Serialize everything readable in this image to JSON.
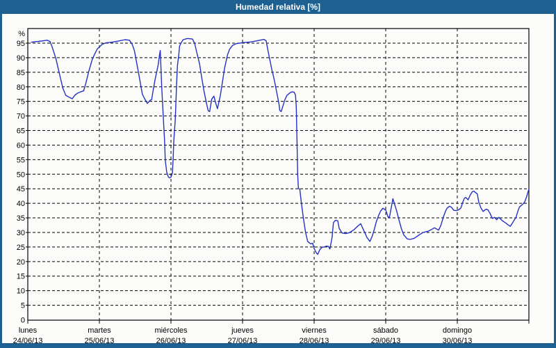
{
  "window": {
    "title": "Humedad relativa [%]"
  },
  "colors": {
    "frame": "#1e6191",
    "titlebar_bg": "#1e6191",
    "title_text": "#ffffff",
    "plot_bg": "#fcfdfa",
    "line": "#2230c4",
    "grid": "#000000",
    "axis": "#000000",
    "text": "#000000"
  },
  "chart_data": {
    "type": "line",
    "title": "Humedad relativa [%]",
    "ylabel": "%",
    "ylim": [
      0,
      100
    ],
    "y_tick_step": 5,
    "y_tick_labels": [
      "0",
      "5",
      "10",
      "15",
      "20",
      "25",
      "30",
      "35",
      "40",
      "45",
      "50",
      "55",
      "60",
      "65",
      "70",
      "75",
      "80",
      "85",
      "90",
      "95"
    ],
    "y_unit_label": "%",
    "grid": "dashed",
    "legend_position": "none",
    "x_days": [
      {
        "name": "lunes",
        "date": "24/06/13"
      },
      {
        "name": "martes",
        "date": "25/06/13"
      },
      {
        "name": "miércoles",
        "date": "26/06/13"
      },
      {
        "name": "jueves",
        "date": "27/06/13"
      },
      {
        "name": "viernes",
        "date": "28/06/13"
      },
      {
        "name": "sábado",
        "date": "29/06/13"
      },
      {
        "name": "domingo",
        "date": "30/06/13"
      }
    ],
    "xlim_days": [
      0,
      7
    ],
    "series": [
      {
        "name": "Humedad relativa",
        "units": "%",
        "points": [
          [
            0.05,
            95.3
          ],
          [
            0.1,
            95.5
          ],
          [
            0.15,
            95.6
          ],
          [
            0.21,
            95.8
          ],
          [
            0.27,
            96.0
          ],
          [
            0.31,
            95.6
          ],
          [
            0.34,
            93.7
          ],
          [
            0.39,
            89.9
          ],
          [
            0.44,
            84.7
          ],
          [
            0.49,
            79.5
          ],
          [
            0.53,
            77.1
          ],
          [
            0.58,
            76.4
          ],
          [
            0.62,
            75.9
          ],
          [
            0.66,
            77.2
          ],
          [
            0.7,
            77.9
          ],
          [
            0.74,
            78.3
          ],
          [
            0.78,
            78.6
          ],
          [
            0.81,
            81.1
          ],
          [
            0.85,
            85.1
          ],
          [
            0.9,
            89.4
          ],
          [
            0.94,
            91.5
          ],
          [
            0.97,
            93.0
          ],
          [
            1.04,
            94.6
          ],
          [
            1.09,
            95.1
          ],
          [
            1.17,
            95.3
          ],
          [
            1.26,
            95.7
          ],
          [
            1.36,
            96.2
          ],
          [
            1.42,
            96.0
          ],
          [
            1.46,
            94.5
          ],
          [
            1.49,
            92.3
          ],
          [
            1.52,
            88.3
          ],
          [
            1.55,
            84.3
          ],
          [
            1.58,
            80.3
          ],
          [
            1.6,
            77.5
          ],
          [
            1.63,
            76.0
          ],
          [
            1.67,
            74.3
          ],
          [
            1.71,
            75.4
          ],
          [
            1.73,
            75.6
          ],
          [
            1.75,
            78.7
          ],
          [
            1.78,
            82.7
          ],
          [
            1.82,
            87.4
          ],
          [
            1.84,
            91.0
          ],
          [
            1.85,
            92.5
          ],
          [
            1.86,
            86.6
          ],
          [
            1.87,
            80.3
          ],
          [
            1.89,
            70.7
          ],
          [
            1.91,
            62.0
          ],
          [
            1.92,
            54.8
          ],
          [
            1.94,
            50.8
          ],
          [
            1.96,
            49.2
          ],
          [
            1.98,
            48.7
          ],
          [
            2.0,
            49.0
          ],
          [
            2.02,
            50.5
          ],
          [
            2.03,
            55.2
          ],
          [
            2.04,
            61.6
          ],
          [
            2.06,
            68.8
          ],
          [
            2.07,
            75.2
          ],
          [
            2.08,
            81.6
          ],
          [
            2.09,
            87.2
          ],
          [
            2.11,
            91.2
          ],
          [
            2.12,
            94.0
          ],
          [
            2.14,
            95.0
          ],
          [
            2.17,
            96.2
          ],
          [
            2.23,
            96.6
          ],
          [
            2.3,
            96.4
          ],
          [
            2.33,
            95.0
          ],
          [
            2.36,
            91.8
          ],
          [
            2.4,
            87.8
          ],
          [
            2.43,
            83.1
          ],
          [
            2.46,
            78.7
          ],
          [
            2.5,
            73.9
          ],
          [
            2.52,
            71.8
          ],
          [
            2.54,
            71.5
          ],
          [
            2.57,
            75.8
          ],
          [
            2.6,
            76.8
          ],
          [
            2.63,
            74.0
          ],
          [
            2.65,
            72.5
          ],
          [
            2.69,
            77.1
          ],
          [
            2.72,
            81.9
          ],
          [
            2.75,
            86.6
          ],
          [
            2.79,
            91.0
          ],
          [
            2.82,
            93.0
          ],
          [
            2.86,
            94.2
          ],
          [
            2.91,
            94.8
          ],
          [
            3.01,
            95.2
          ],
          [
            3.11,
            95.4
          ],
          [
            3.2,
            95.8
          ],
          [
            3.3,
            96.3
          ],
          [
            3.33,
            95.8
          ],
          [
            3.35,
            93.0
          ],
          [
            3.37,
            90.6
          ],
          [
            3.39,
            88.2
          ],
          [
            3.41,
            85.8
          ],
          [
            3.43,
            83.8
          ],
          [
            3.45,
            81.5
          ],
          [
            3.47,
            79.0
          ],
          [
            3.49,
            76.5
          ],
          [
            3.51,
            74.0
          ],
          [
            3.52,
            71.9
          ],
          [
            3.54,
            71.5
          ],
          [
            3.56,
            73.1
          ],
          [
            3.59,
            75.5
          ],
          [
            3.62,
            77.1
          ],
          [
            3.66,
            77.9
          ],
          [
            3.69,
            78.3
          ],
          [
            3.72,
            78.2
          ],
          [
            3.74,
            77.1
          ],
          [
            3.75,
            73.0
          ],
          [
            3.76,
            62.0
          ],
          [
            3.77,
            50.0
          ],
          [
            3.78,
            45.2
          ],
          [
            3.8,
            44.8
          ],
          [
            3.82,
            40.4
          ],
          [
            3.85,
            34.8
          ],
          [
            3.88,
            30.1
          ],
          [
            3.91,
            26.9
          ],
          [
            3.95,
            26.1
          ],
          [
            3.98,
            26.3
          ],
          [
            4.0,
            24.5
          ],
          [
            4.03,
            23.0
          ],
          [
            4.05,
            22.5
          ],
          [
            4.08,
            24.1
          ],
          [
            4.11,
            24.9
          ],
          [
            4.14,
            25.0
          ],
          [
            4.17,
            25.3
          ],
          [
            4.2,
            25.2
          ],
          [
            4.22,
            24.3
          ],
          [
            4.25,
            28.3
          ],
          [
            4.27,
            33.4
          ],
          [
            4.3,
            34.2
          ],
          [
            4.33,
            34.0
          ],
          [
            4.35,
            31.4
          ],
          [
            4.39,
            29.8
          ],
          [
            4.44,
            29.6
          ],
          [
            4.49,
            29.9
          ],
          [
            4.53,
            30.5
          ],
          [
            4.56,
            31.0
          ],
          [
            4.61,
            32.2
          ],
          [
            4.65,
            33.0
          ],
          [
            4.68,
            31.4
          ],
          [
            4.71,
            29.8
          ],
          [
            4.74,
            28.2
          ],
          [
            4.78,
            26.9
          ],
          [
            4.81,
            28.6
          ],
          [
            4.84,
            31.0
          ],
          [
            4.87,
            33.8
          ],
          [
            4.9,
            35.8
          ],
          [
            4.93,
            37.4
          ],
          [
            4.96,
            38.3
          ],
          [
            5.0,
            37.7
          ],
          [
            5.03,
            35.5
          ],
          [
            5.05,
            35.0
          ],
          [
            5.08,
            38.8
          ],
          [
            5.1,
            41.6
          ],
          [
            5.13,
            39.2
          ],
          [
            5.15,
            37.6
          ],
          [
            5.18,
            34.8
          ],
          [
            5.22,
            31.2
          ],
          [
            5.25,
            29.2
          ],
          [
            5.3,
            27.8
          ],
          [
            5.34,
            27.6
          ],
          [
            5.37,
            27.8
          ],
          [
            5.4,
            28.0
          ],
          [
            5.47,
            29.2
          ],
          [
            5.52,
            30.0
          ],
          [
            5.59,
            30.4
          ],
          [
            5.64,
            31.0
          ],
          [
            5.68,
            31.6
          ],
          [
            5.74,
            30.8
          ],
          [
            5.77,
            32.4
          ],
          [
            5.81,
            35.6
          ],
          [
            5.84,
            37.6
          ],
          [
            5.86,
            38.4
          ],
          [
            5.89,
            39.0
          ],
          [
            5.92,
            38.6
          ],
          [
            5.95,
            37.6
          ],
          [
            5.99,
            37.5
          ],
          [
            6.02,
            37.8
          ],
          [
            6.05,
            38.4
          ],
          [
            6.08,
            40.6
          ],
          [
            6.1,
            41.8
          ],
          [
            6.12,
            42.0
          ],
          [
            6.15,
            41.2
          ],
          [
            6.18,
            42.8
          ],
          [
            6.21,
            44.0
          ],
          [
            6.23,
            44.2
          ],
          [
            6.26,
            43.6
          ],
          [
            6.28,
            43.2
          ],
          [
            6.3,
            40.4
          ],
          [
            6.33,
            38.4
          ],
          [
            6.36,
            37.2
          ],
          [
            6.39,
            37.8
          ],
          [
            6.41,
            38.0
          ],
          [
            6.43,
            37.7
          ],
          [
            6.46,
            36.4
          ],
          [
            6.49,
            34.8
          ],
          [
            6.52,
            35.2
          ],
          [
            6.55,
            34.4
          ],
          [
            6.58,
            35.2
          ],
          [
            6.63,
            34.0
          ],
          [
            6.68,
            33.2
          ],
          [
            6.72,
            32.4
          ],
          [
            6.74,
            32.1
          ],
          [
            6.78,
            33.6
          ],
          [
            6.82,
            35.2
          ],
          [
            6.85,
            37.6
          ],
          [
            6.87,
            38.8
          ],
          [
            6.91,
            39.6
          ],
          [
            6.94,
            40.4
          ],
          [
            6.97,
            42.4
          ],
          [
            7.0,
            44.9
          ]
        ]
      }
    ]
  }
}
